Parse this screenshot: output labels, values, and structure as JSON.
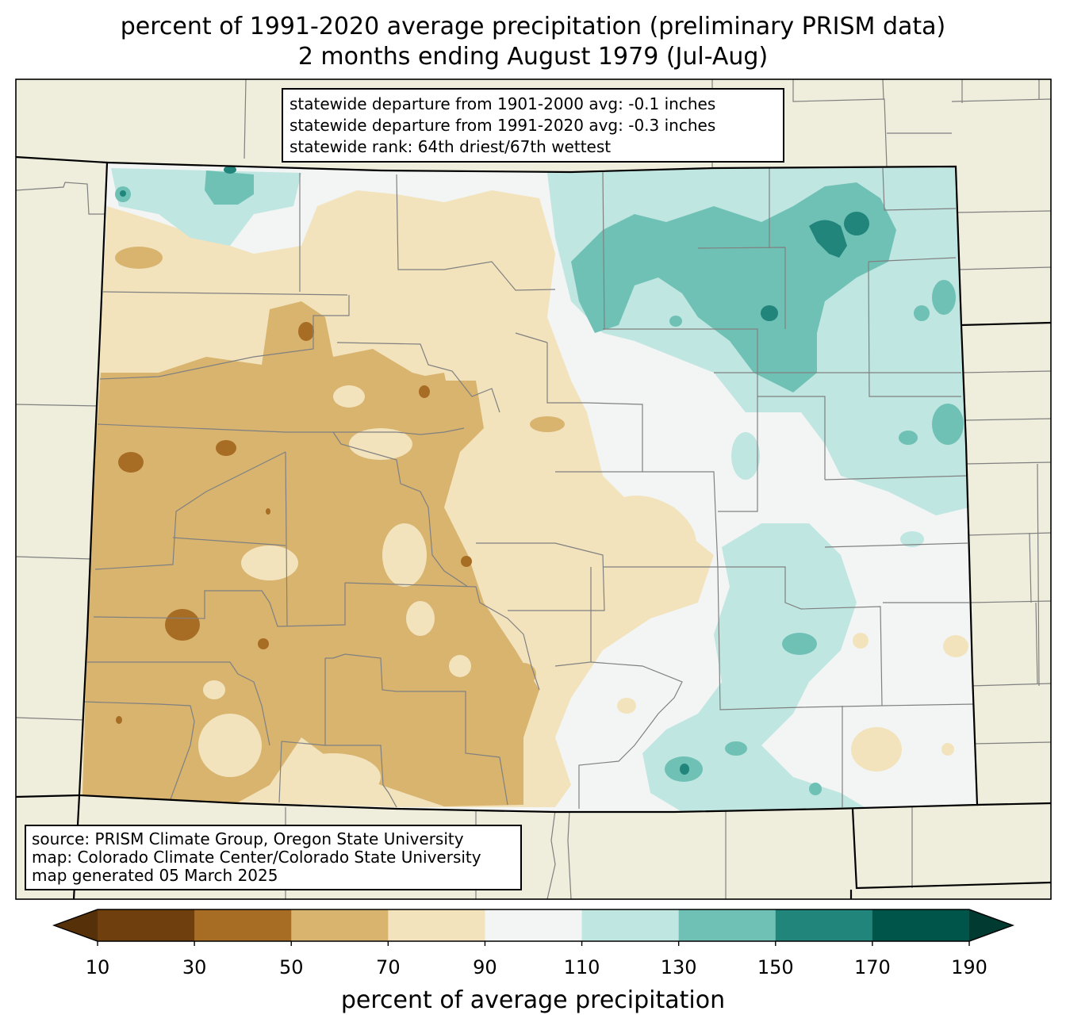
{
  "title": {
    "line1": "percent of 1991-2020 average precipitation (preliminary PRISM data)",
    "line2": "2 months ending August 1979 (Jul-Aug)"
  },
  "stats": {
    "line1": "statewide departure from 1901-2000 avg: -0.1 inches",
    "line2": "statewide departure from 1991-2020 avg: -0.3 inches",
    "line3": "statewide rank: 64th driest/67th wettest"
  },
  "source": {
    "line1": "source: PRISM Climate Group, Oregon State University",
    "line2": "map: Colorado Climate Center/Colorado State University",
    "line3": "map generated 05 March 2025"
  },
  "colorbar": {
    "label": "percent of average precipitation",
    "ticks": [
      "10",
      "30",
      "50",
      "70",
      "90",
      "110",
      "130",
      "150",
      "170",
      "190"
    ],
    "bins": [
      {
        "range": "10-30",
        "color": "#6f3f0e"
      },
      {
        "range": "30-50",
        "color": "#a86d24"
      },
      {
        "range": "50-70",
        "color": "#d8b46f"
      },
      {
        "range": "70-90",
        "color": "#f2e3bd"
      },
      {
        "range": "90-110",
        "color": "#f3f5f4"
      },
      {
        "range": "110-130",
        "color": "#bfe6e1"
      },
      {
        "range": "130-150",
        "color": "#70c1b5"
      },
      {
        "range": "150-170",
        "color": "#21857b"
      },
      {
        "range": "170-190",
        "color": "#00554b"
      }
    ],
    "under_color": "#553008",
    "over_color": "#003a30"
  },
  "colors": {
    "land_outside": "#efeddc",
    "county_lines": "#808080",
    "state_lines": "#000000"
  }
}
